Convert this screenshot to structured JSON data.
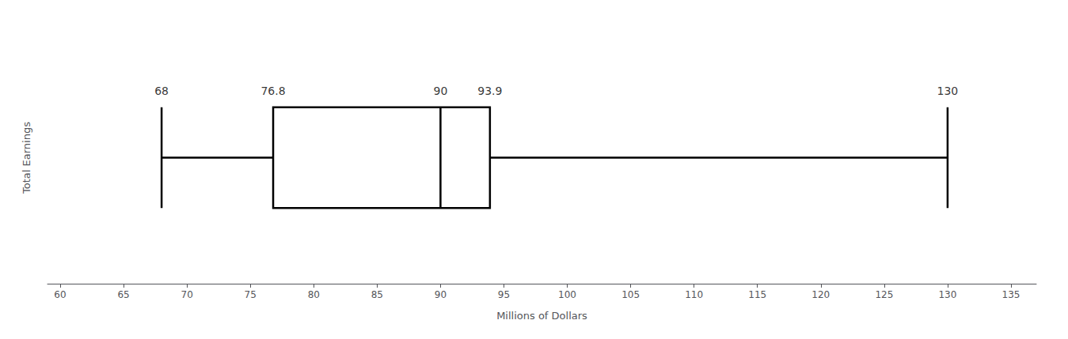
{
  "chart_data": {
    "type": "boxplot",
    "orientation": "horizontal",
    "xlabel": "Millions of Dollars",
    "ylabel": "Total Earnings",
    "values": [
      68,
      76.8,
      90,
      93.9,
      130
    ],
    "annotations": [
      {
        "text": "68",
        "x": 68
      },
      {
        "text": "76.8",
        "x": 76.8
      },
      {
        "text": "90",
        "x": 90
      },
      {
        "text": "93.9",
        "x": 93.9
      },
      {
        "text": "130",
        "x": 130
      }
    ],
    "xlim": [
      59,
      137
    ],
    "xticks": [
      60,
      65,
      70,
      75,
      80,
      85,
      90,
      95,
      100,
      105,
      110,
      115,
      120,
      125,
      130,
      135
    ],
    "tick_labels": "x",
    "grid": false,
    "color": "black"
  }
}
